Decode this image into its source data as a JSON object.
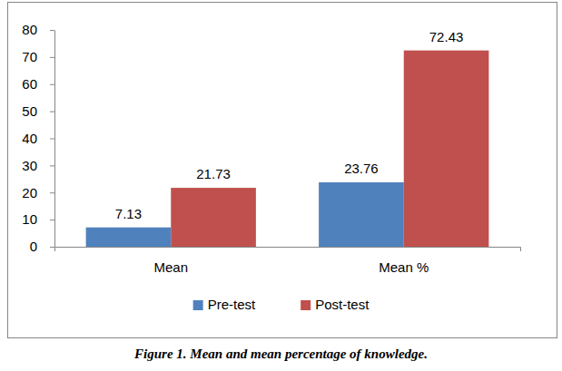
{
  "chart_data": {
    "type": "bar",
    "title": "Figure 1. Mean and mean percentage of knowledge.",
    "categories": [
      "Mean",
      "Mean %"
    ],
    "series": [
      {
        "name": "Pre-test",
        "color": "#4f81bd",
        "values": [
          7.13,
          23.76
        ]
      },
      {
        "name": "Post-test",
        "color": "#c0504d",
        "values": [
          21.73,
          72.43
        ]
      }
    ],
    "ylim": [
      0,
      80
    ],
    "yticks": [
      0,
      10,
      20,
      30,
      40,
      50,
      60,
      70,
      80
    ],
    "grid": false,
    "legend": "bottom",
    "data_labels": true
  }
}
